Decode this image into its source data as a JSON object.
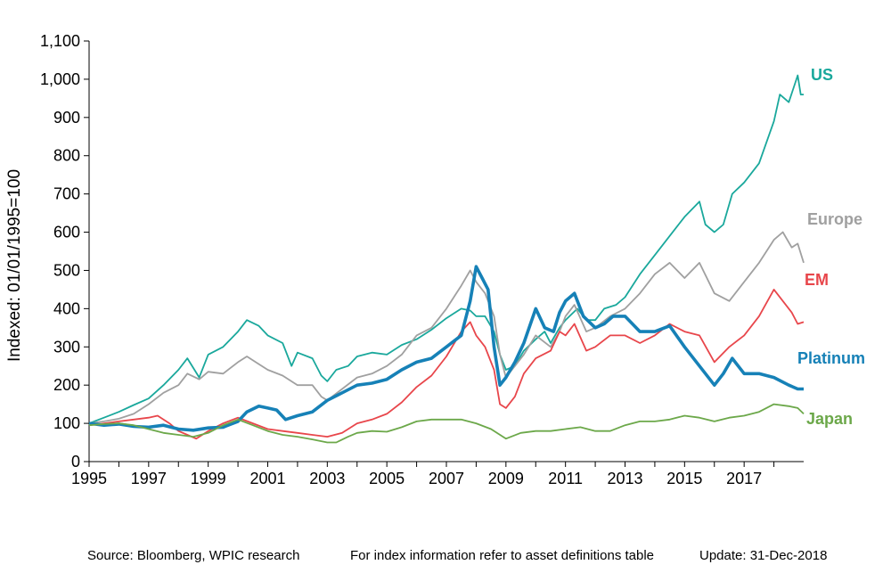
{
  "chart_data": {
    "type": "line",
    "ylabel": "Indexed: 01/01/1995=100",
    "xlabel": "",
    "xlim": [
      1995,
      2019
    ],
    "ylim": [
      0,
      1100
    ],
    "y_ticks": [
      "0",
      "100",
      "200",
      "300",
      "400",
      "500",
      "600",
      "700",
      "800",
      "900",
      "1,000",
      "1,100"
    ],
    "x_ticks": [
      "1995",
      "1997",
      "1999",
      "2001",
      "2003",
      "2005",
      "2007",
      "2009",
      "2011",
      "2013",
      "2015",
      "2017"
    ],
    "grid": false,
    "series": [
      {
        "name": "US",
        "color": "#1aa89c",
        "width": 1.8,
        "points": [
          [
            1995,
            100
          ],
          [
            1995.5,
            115
          ],
          [
            1996,
            130
          ],
          [
            1996.5,
            148
          ],
          [
            1997,
            165
          ],
          [
            1997.5,
            200
          ],
          [
            1998,
            240
          ],
          [
            1998.3,
            270
          ],
          [
            1998.7,
            220
          ],
          [
            1999,
            280
          ],
          [
            1999.5,
            300
          ],
          [
            2000,
            340
          ],
          [
            2000.3,
            370
          ],
          [
            2000.7,
            355
          ],
          [
            2001,
            330
          ],
          [
            2001.5,
            310
          ],
          [
            2001.8,
            250
          ],
          [
            2002,
            285
          ],
          [
            2002.5,
            270
          ],
          [
            2002.8,
            225
          ],
          [
            2003,
            210
          ],
          [
            2003.3,
            240
          ],
          [
            2003.7,
            250
          ],
          [
            2004,
            275
          ],
          [
            2004.5,
            285
          ],
          [
            2005,
            280
          ],
          [
            2005.5,
            305
          ],
          [
            2006,
            320
          ],
          [
            2006.5,
            345
          ],
          [
            2007,
            375
          ],
          [
            2007.5,
            400
          ],
          [
            2007.8,
            395
          ],
          [
            2008,
            380
          ],
          [
            2008.3,
            380
          ],
          [
            2008.6,
            340
          ],
          [
            2008.8,
            280
          ],
          [
            2009,
            240
          ],
          [
            2009.3,
            250
          ],
          [
            2009.6,
            290
          ],
          [
            2010,
            320
          ],
          [
            2010.3,
            340
          ],
          [
            2010.5,
            310
          ],
          [
            2010.8,
            350
          ],
          [
            2011,
            370
          ],
          [
            2011.4,
            400
          ],
          [
            2011.7,
            370
          ],
          [
            2012,
            370
          ],
          [
            2012.3,
            400
          ],
          [
            2012.7,
            410
          ],
          [
            2013,
            430
          ],
          [
            2013.5,
            490
          ],
          [
            2014,
            540
          ],
          [
            2014.5,
            590
          ],
          [
            2015,
            640
          ],
          [
            2015.5,
            680
          ],
          [
            2015.7,
            620
          ],
          [
            2016,
            600
          ],
          [
            2016.3,
            620
          ],
          [
            2016.6,
            700
          ],
          [
            2017,
            730
          ],
          [
            2017.5,
            780
          ],
          [
            2018,
            890
          ],
          [
            2018.2,
            960
          ],
          [
            2018.5,
            940
          ],
          [
            2018.8,
            1010
          ],
          [
            2018.9,
            960
          ],
          [
            2019,
            960
          ]
        ]
      },
      {
        "name": "Europe",
        "color": "#a0a0a0",
        "width": 1.8,
        "points": [
          [
            1995,
            100
          ],
          [
            1995.5,
            105
          ],
          [
            1996,
            112
          ],
          [
            1996.5,
            125
          ],
          [
            1997,
            150
          ],
          [
            1997.5,
            180
          ],
          [
            1998,
            200
          ],
          [
            1998.3,
            230
          ],
          [
            1998.7,
            215
          ],
          [
            1999,
            235
          ],
          [
            1999.5,
            230
          ],
          [
            2000,
            260
          ],
          [
            2000.3,
            275
          ],
          [
            2000.7,
            255
          ],
          [
            2001,
            240
          ],
          [
            2001.5,
            225
          ],
          [
            2002,
            200
          ],
          [
            2002.5,
            200
          ],
          [
            2002.8,
            170
          ],
          [
            2003,
            160
          ],
          [
            2003.5,
            190
          ],
          [
            2004,
            220
          ],
          [
            2004.5,
            230
          ],
          [
            2005,
            250
          ],
          [
            2005.5,
            280
          ],
          [
            2006,
            330
          ],
          [
            2006.5,
            350
          ],
          [
            2007,
            400
          ],
          [
            2007.5,
            460
          ],
          [
            2007.8,
            500
          ],
          [
            2008,
            470
          ],
          [
            2008.3,
            440
          ],
          [
            2008.6,
            380
          ],
          [
            2008.8,
            280
          ],
          [
            2009,
            220
          ],
          [
            2009.3,
            250
          ],
          [
            2009.6,
            280
          ],
          [
            2010,
            330
          ],
          [
            2010.5,
            300
          ],
          [
            2010.8,
            340
          ],
          [
            2011,
            380
          ],
          [
            2011.3,
            410
          ],
          [
            2011.7,
            340
          ],
          [
            2012,
            350
          ],
          [
            2012.5,
            380
          ],
          [
            2013,
            400
          ],
          [
            2013.5,
            440
          ],
          [
            2014,
            490
          ],
          [
            2014.5,
            520
          ],
          [
            2015,
            480
          ],
          [
            2015.5,
            520
          ],
          [
            2016,
            440
          ],
          [
            2016.5,
            420
          ],
          [
            2017,
            470
          ],
          [
            2017.5,
            520
          ],
          [
            2018,
            580
          ],
          [
            2018.3,
            600
          ],
          [
            2018.6,
            560
          ],
          [
            2018.8,
            570
          ],
          [
            2019,
            520
          ]
        ]
      },
      {
        "name": "EM",
        "color": "#e8464b",
        "width": 1.8,
        "points": [
          [
            1995,
            95
          ],
          [
            1995.5,
            100
          ],
          [
            1996,
            105
          ],
          [
            1996.5,
            110
          ],
          [
            1997,
            115
          ],
          [
            1997.3,
            120
          ],
          [
            1997.7,
            100
          ],
          [
            1998,
            80
          ],
          [
            1998.3,
            70
          ],
          [
            1998.6,
            60
          ],
          [
            1999,
            80
          ],
          [
            1999.5,
            100
          ],
          [
            2000,
            115
          ],
          [
            2000.5,
            100
          ],
          [
            2001,
            85
          ],
          [
            2001.5,
            80
          ],
          [
            2002,
            75
          ],
          [
            2002.5,
            70
          ],
          [
            2003,
            65
          ],
          [
            2003.5,
            75
          ],
          [
            2004,
            100
          ],
          [
            2004.5,
            110
          ],
          [
            2005,
            125
          ],
          [
            2005.5,
            155
          ],
          [
            2006,
            195
          ],
          [
            2006.5,
            225
          ],
          [
            2007,
            275
          ],
          [
            2007.5,
            340
          ],
          [
            2007.8,
            365
          ],
          [
            2008,
            330
          ],
          [
            2008.3,
            300
          ],
          [
            2008.6,
            240
          ],
          [
            2008.8,
            150
          ],
          [
            2009,
            140
          ],
          [
            2009.3,
            170
          ],
          [
            2009.6,
            230
          ],
          [
            2010,
            270
          ],
          [
            2010.5,
            290
          ],
          [
            2010.8,
            340
          ],
          [
            2011,
            330
          ],
          [
            2011.3,
            360
          ],
          [
            2011.7,
            290
          ],
          [
            2012,
            300
          ],
          [
            2012.5,
            330
          ],
          [
            2013,
            330
          ],
          [
            2013.5,
            310
          ],
          [
            2014,
            330
          ],
          [
            2014.5,
            360
          ],
          [
            2015,
            340
          ],
          [
            2015.5,
            330
          ],
          [
            2016,
            260
          ],
          [
            2016.5,
            300
          ],
          [
            2017,
            330
          ],
          [
            2017.5,
            380
          ],
          [
            2018,
            450
          ],
          [
            2018.3,
            420
          ],
          [
            2018.6,
            390
          ],
          [
            2018.8,
            360
          ],
          [
            2019,
            365
          ]
        ]
      },
      {
        "name": "Platinum",
        "color": "#1681b7",
        "width": 3.6,
        "points": [
          [
            1995,
            100
          ],
          [
            1995.5,
            95
          ],
          [
            1996,
            98
          ],
          [
            1996.5,
            92
          ],
          [
            1997,
            90
          ],
          [
            1997.5,
            95
          ],
          [
            1998,
            85
          ],
          [
            1998.5,
            82
          ],
          [
            1999,
            88
          ],
          [
            1999.5,
            90
          ],
          [
            2000,
            105
          ],
          [
            2000.3,
            130
          ],
          [
            2000.7,
            145
          ],
          [
            2001,
            140
          ],
          [
            2001.3,
            135
          ],
          [
            2001.6,
            110
          ],
          [
            2002,
            120
          ],
          [
            2002.5,
            130
          ],
          [
            2003,
            160
          ],
          [
            2003.5,
            180
          ],
          [
            2004,
            200
          ],
          [
            2004.5,
            205
          ],
          [
            2005,
            215
          ],
          [
            2005.5,
            240
          ],
          [
            2006,
            260
          ],
          [
            2006.5,
            270
          ],
          [
            2007,
            300
          ],
          [
            2007.5,
            330
          ],
          [
            2007.8,
            420
          ],
          [
            2008,
            510
          ],
          [
            2008.2,
            480
          ],
          [
            2008.4,
            450
          ],
          [
            2008.6,
            300
          ],
          [
            2008.8,
            200
          ],
          [
            2009,
            220
          ],
          [
            2009.3,
            260
          ],
          [
            2009.6,
            310
          ],
          [
            2010,
            400
          ],
          [
            2010.3,
            350
          ],
          [
            2010.6,
            340
          ],
          [
            2010.8,
            390
          ],
          [
            2011,
            420
          ],
          [
            2011.3,
            440
          ],
          [
            2011.6,
            380
          ],
          [
            2012,
            350
          ],
          [
            2012.3,
            360
          ],
          [
            2012.6,
            380
          ],
          [
            2013,
            380
          ],
          [
            2013.5,
            340
          ],
          [
            2014,
            340
          ],
          [
            2014.5,
            355
          ],
          [
            2015,
            300
          ],
          [
            2015.5,
            250
          ],
          [
            2016,
            200
          ],
          [
            2016.3,
            230
          ],
          [
            2016.6,
            270
          ],
          [
            2017,
            230
          ],
          [
            2017.5,
            230
          ],
          [
            2018,
            220
          ],
          [
            2018.5,
            200
          ],
          [
            2018.8,
            190
          ],
          [
            2019,
            190
          ]
        ]
      },
      {
        "name": "Japan",
        "color": "#6ca84a",
        "width": 1.8,
        "points": [
          [
            1995,
            95
          ],
          [
            1995.5,
            98
          ],
          [
            1996,
            100
          ],
          [
            1996.5,
            95
          ],
          [
            1997,
            85
          ],
          [
            1997.5,
            75
          ],
          [
            1998,
            70
          ],
          [
            1998.5,
            65
          ],
          [
            1999,
            75
          ],
          [
            1999.5,
            95
          ],
          [
            2000,
            110
          ],
          [
            2000.5,
            95
          ],
          [
            2001,
            80
          ],
          [
            2001.5,
            70
          ],
          [
            2002,
            65
          ],
          [
            2002.5,
            58
          ],
          [
            2003,
            50
          ],
          [
            2003.3,
            50
          ],
          [
            2003.7,
            65
          ],
          [
            2004,
            75
          ],
          [
            2004.5,
            80
          ],
          [
            2005,
            78
          ],
          [
            2005.5,
            90
          ],
          [
            2006,
            105
          ],
          [
            2006.5,
            110
          ],
          [
            2007,
            110
          ],
          [
            2007.5,
            110
          ],
          [
            2008,
            100
          ],
          [
            2008.5,
            85
          ],
          [
            2009,
            60
          ],
          [
            2009.5,
            75
          ],
          [
            2010,
            80
          ],
          [
            2010.5,
            80
          ],
          [
            2011,
            85
          ],
          [
            2011.5,
            90
          ],
          [
            2012,
            80
          ],
          [
            2012.5,
            80
          ],
          [
            2013,
            95
          ],
          [
            2013.5,
            105
          ],
          [
            2014,
            105
          ],
          [
            2014.5,
            110
          ],
          [
            2015,
            120
          ],
          [
            2015.5,
            115
          ],
          [
            2016,
            105
          ],
          [
            2016.5,
            115
          ],
          [
            2017,
            120
          ],
          [
            2017.5,
            130
          ],
          [
            2018,
            150
          ],
          [
            2018.5,
            145
          ],
          [
            2018.8,
            140
          ],
          [
            2019,
            125
          ]
        ]
      }
    ],
    "labels": {
      "us": "US",
      "europe": "Europe",
      "em": "EM",
      "platinum": "Platinum",
      "japan": "Japan"
    }
  },
  "footer": {
    "source": "Source: Bloomberg, WPIC research",
    "note": "For index information refer to asset definitions table",
    "update": "Update: 31-Dec-2018"
  }
}
